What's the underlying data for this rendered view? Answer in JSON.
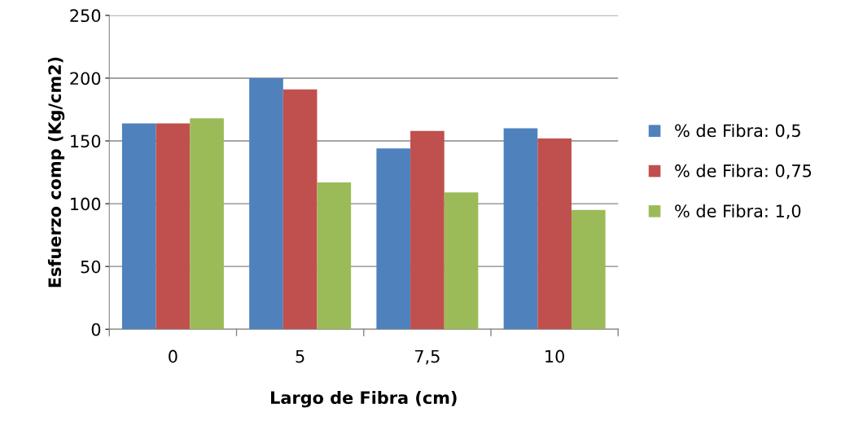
{
  "chart_data": {
    "type": "bar",
    "xlabel": "Largo de Fibra (cm)",
    "ylabel": "Esfuerzo comp (Kg/cm2)",
    "categories": [
      "0",
      "5",
      "7,5",
      "10"
    ],
    "series": [
      {
        "name": "% de Fibra: 0,5",
        "color": "#4f81bd",
        "values": [
          164,
          200,
          144,
          160
        ]
      },
      {
        "name": "% de Fibra: 0,75",
        "color": "#c0504d",
        "values": [
          164,
          191,
          158,
          152
        ]
      },
      {
        "name": "% de Fibra: 1,0",
        "color": "#9bbb59",
        "values": [
          168,
          117,
          109,
          95
        ]
      }
    ],
    "ylim": [
      0,
      250
    ],
    "yticks": [
      0,
      50,
      100,
      150,
      200,
      250
    ],
    "grid": "y",
    "legend": "right"
  }
}
